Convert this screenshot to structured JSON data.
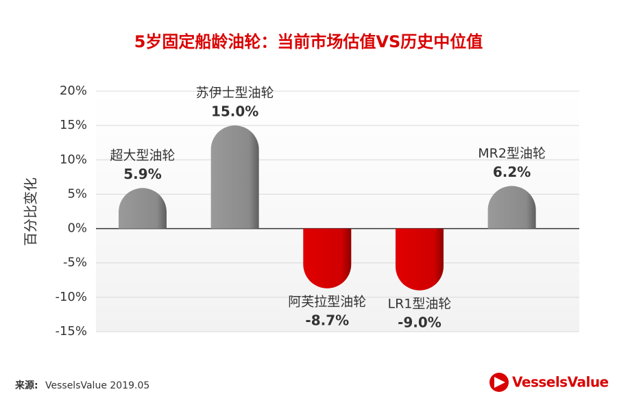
{
  "chart_data": {
    "type": "bar",
    "title": "5岁固定船龄油轮：当前市场估值VS历史中位值",
    "y_label": "百分比变化",
    "categories": [
      "超大型油轮",
      "苏伊士型油轮",
      "阿芙拉型油轮",
      "LR1型油轮",
      "MR2型油轮"
    ],
    "values": [
      5.9,
      15.0,
      -8.7,
      -9.0,
      6.2
    ],
    "value_labels": [
      "5.9%",
      "15.0%",
      "-8.7%",
      "-9.0%",
      "6.2%"
    ],
    "colors": {
      "positive": "#8c8c8c",
      "negative": "#d90000"
    },
    "ylim": [
      -15,
      20
    ],
    "yticks": [
      {
        "value": -15,
        "label": "-15%"
      },
      {
        "value": -10,
        "label": "-10%"
      },
      {
        "value": -5,
        "label": "-5%"
      },
      {
        "value": 0,
        "label": "0%"
      },
      {
        "value": 5,
        "label": "5%"
      },
      {
        "value": 10,
        "label": "10%"
      },
      {
        "value": 15,
        "label": "15%"
      },
      {
        "value": 20,
        "label": "20%"
      }
    ],
    "grid": true,
    "source": {
      "label": "来源:",
      "text": "VesselsValue 2019.05"
    },
    "logo": "VesselsValue"
  }
}
